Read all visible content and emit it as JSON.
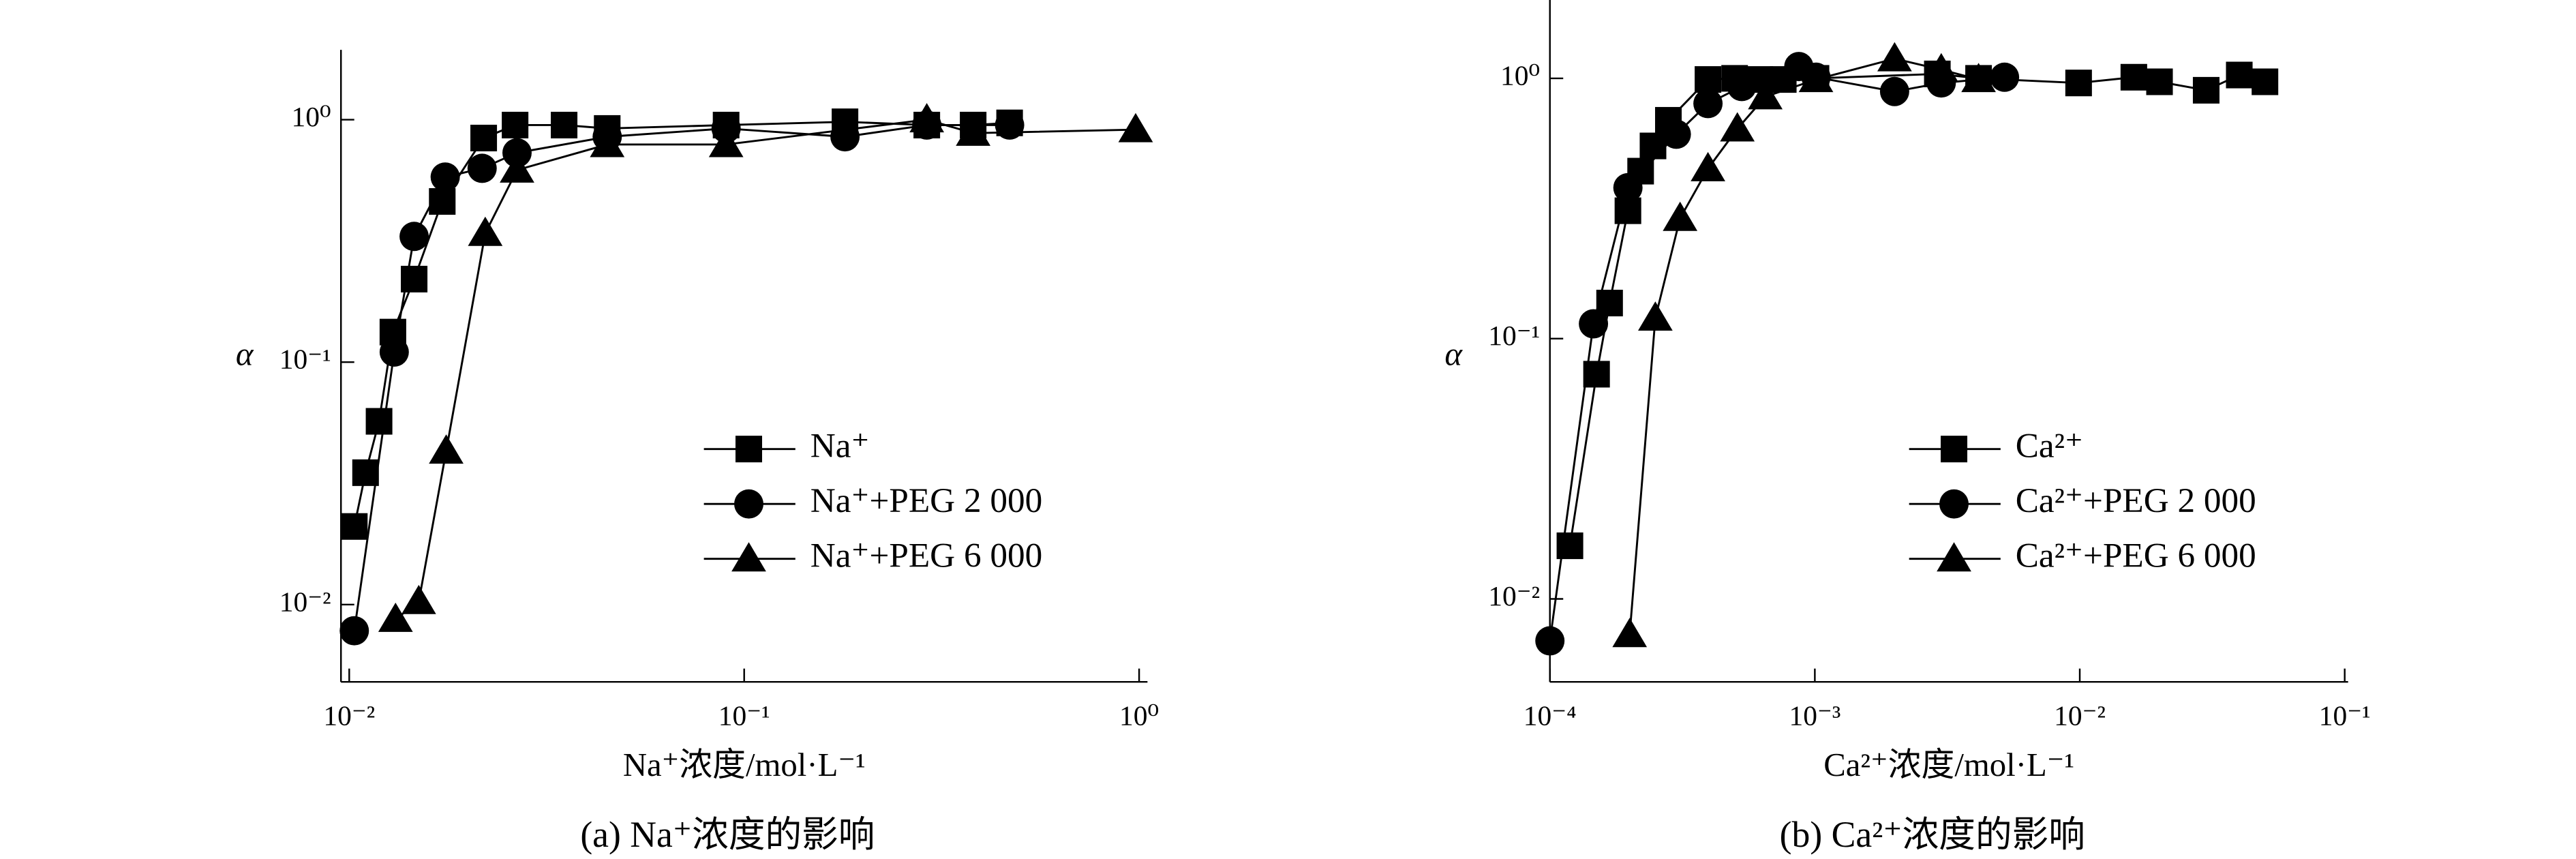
{
  "chart_data": [
    {
      "type": "line",
      "caption": "(a) Na⁺浓度的影响",
      "xlabel": "Na⁺浓度/mol·L⁻¹",
      "ylabel": "α",
      "log_x": true,
      "log_y": true,
      "legend_position": "center right",
      "xlim": [
        0.00953,
        1.05
      ],
      "ylim": [
        0.0048,
        1.94
      ],
      "xticks": [
        {
          "value": 0.01,
          "label": "10⁻²"
        },
        {
          "value": 0.1,
          "label": "10⁻¹"
        },
        {
          "value": 1,
          "label": "10⁰"
        }
      ],
      "yticks": [
        {
          "value": 0.01,
          "label": "10⁻²"
        },
        {
          "value": 0.1,
          "label": "10⁻¹"
        },
        {
          "value": 1,
          "label": "10⁰"
        }
      ],
      "series": [
        {
          "name": "Na⁺",
          "color": "#000000",
          "marker": "square",
          "x": [
            0.0103,
            0.011,
            0.0119,
            0.0129,
            0.0146,
            0.0172,
            0.0219,
            0.0263,
            0.035,
            0.045,
            0.09,
            0.18,
            0.29,
            0.38,
            0.47
          ],
          "values": [
            0.021,
            0.035,
            0.057,
            0.133,
            0.22,
            0.46,
            0.84,
            0.95,
            0.95,
            0.92,
            0.95,
            0.98,
            0.95,
            0.95,
            0.97
          ]
        },
        {
          "name": "Na⁺+PEG 2 000",
          "color": "#000000",
          "marker": "circle",
          "x": [
            0.0103,
            0.013,
            0.0146,
            0.0175,
            0.0217,
            0.0266,
            0.045,
            0.09,
            0.18,
            0.29,
            0.47
          ],
          "values": [
            0.0078,
            0.11,
            0.33,
            0.58,
            0.63,
            0.73,
            0.85,
            0.92,
            0.85,
            0.95,
            0.95
          ]
        },
        {
          "name": "Na⁺+PEG 6 000",
          "color": "#000000",
          "marker": "triangle",
          "x": [
            0.0131,
            0.015,
            0.0176,
            0.0221,
            0.0266,
            0.045,
            0.09,
            0.29,
            0.38,
            0.98
          ],
          "values": [
            0.0087,
            0.0103,
            0.043,
            0.34,
            0.62,
            0.79,
            0.79,
            1.0,
            0.88,
            0.91
          ]
        }
      ]
    },
    {
      "type": "line",
      "caption": "(b) Ca²⁺浓度的影响",
      "xlabel": "Ca²⁺浓度/mol·L⁻¹",
      "ylabel": "α",
      "log_x": true,
      "log_y": true,
      "legend_position": "center right",
      "xlim": [
        0.0001,
        0.103
      ],
      "ylim": [
        0.0048,
        2.0
      ],
      "xticks": [
        {
          "value": 0.0001,
          "label": "10⁻⁴"
        },
        {
          "value": 0.001,
          "label": "10⁻³"
        },
        {
          "value": 0.01,
          "label": "10⁻²"
        },
        {
          "value": 0.1,
          "label": "10⁻¹"
        }
      ],
      "yticks": [
        {
          "value": 0.01,
          "label": "10⁻²"
        },
        {
          "value": 0.1,
          "label": "10⁻¹"
        },
        {
          "value": 1,
          "label": "10⁰"
        }
      ],
      "series": [
        {
          "name": "Ca²⁺",
          "color": "#000000",
          "marker": "square",
          "x": [
            0.000119,
            0.00015,
            0.000168,
            0.000197,
            0.00022,
            0.000245,
            0.00028,
            0.000395,
            0.000498,
            0.00062,
            0.00076,
            0.00101,
            0.0029,
            0.00415,
            0.0099,
            0.016,
            0.02,
            0.03,
            0.04,
            0.05
          ],
          "values": [
            0.016,
            0.073,
            0.137,
            0.31,
            0.44,
            0.55,
            0.69,
            0.99,
            1.0,
            0.99,
            0.99,
            1.0,
            1.04,
            1.0,
            0.96,
            1.01,
            0.97,
            0.9,
            1.03,
            0.97
          ]
        },
        {
          "name": "Ca²⁺+PEG 2 000",
          "color": "#000000",
          "marker": "circle",
          "x": [
            0.0001,
            0.000146,
            0.000197,
            0.0003,
            0.000395,
            0.00053,
            0.00087,
            0.00101,
            0.002,
            0.003,
            0.0052
          ],
          "values": [
            0.0069,
            0.114,
            0.38,
            0.61,
            0.8,
            0.93,
            1.11,
            1.01,
            0.89,
            0.96,
            1.01
          ]
        },
        {
          "name": "Ca²⁺+PEG 6 000",
          "color": "#000000",
          "marker": "triangle",
          "x": [
            0.0002,
            0.00025,
            0.00031,
            0.000395,
            0.00051,
            0.00065,
            0.00101,
            0.002,
            0.003,
            0.00415
          ],
          "values": [
            0.0073,
            0.12,
            0.29,
            0.45,
            0.64,
            0.85,
            0.99,
            1.19,
            1.08,
            0.99
          ]
        }
      ]
    }
  ]
}
